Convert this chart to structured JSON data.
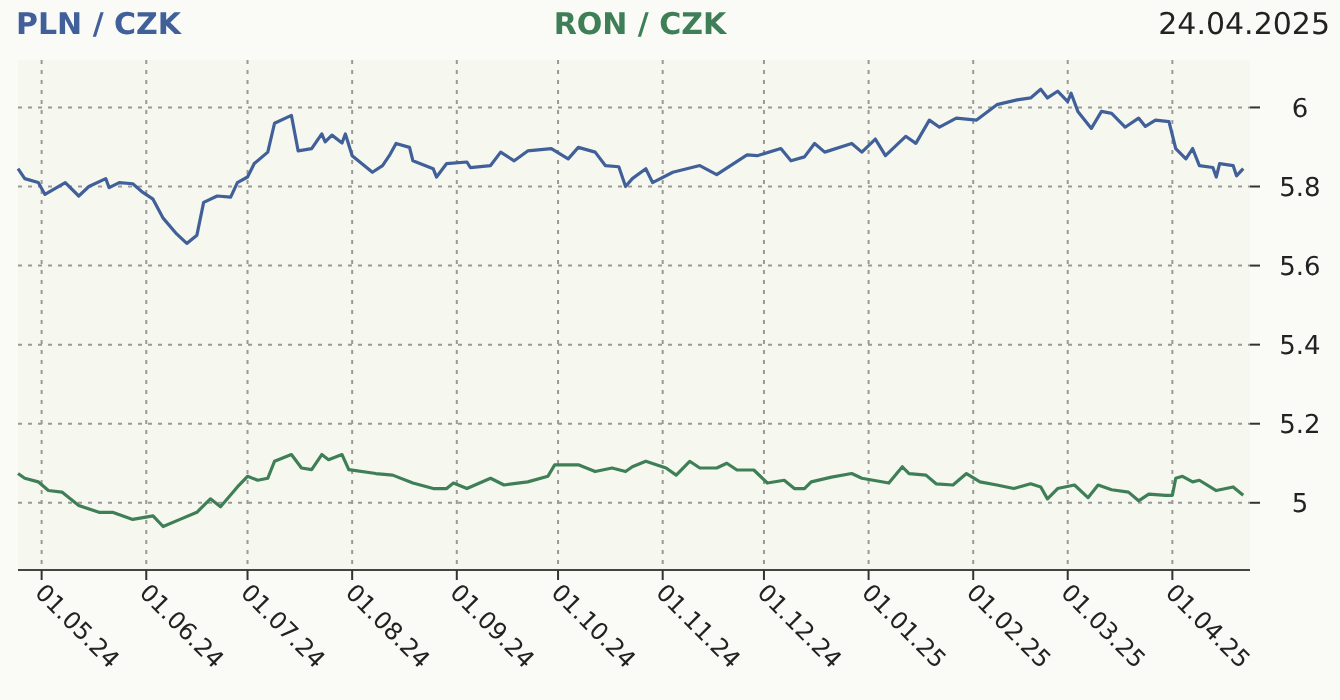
{
  "chart_data": {
    "type": "line",
    "annotations": [
      "24.04.2025"
    ],
    "legend": "top",
    "grid": true,
    "xlim": [
      "2024-04-24",
      "2025-04-24"
    ],
    "xticks": [
      {
        "value": "2024-05-01",
        "label": "01.05.24"
      },
      {
        "value": "2024-06-01",
        "label": "01.06.24"
      },
      {
        "value": "2024-07-01",
        "label": "01.07.24"
      },
      {
        "value": "2024-08-01",
        "label": "01.08.24"
      },
      {
        "value": "2024-09-01",
        "label": "01.09.24"
      },
      {
        "value": "2024-10-01",
        "label": "01.10.24"
      },
      {
        "value": "2024-11-01",
        "label": "01.11.24"
      },
      {
        "value": "2024-12-01",
        "label": "01.12.24"
      },
      {
        "value": "2025-01-01",
        "label": "01.01.25"
      },
      {
        "value": "2025-02-01",
        "label": "01.02.25"
      },
      {
        "value": "2025-03-01",
        "label": "01.03.25"
      },
      {
        "value": "2025-04-01",
        "label": "01.04.25"
      }
    ],
    "ylim": [
      4.83,
      6.12
    ],
    "yticks": [
      5,
      5.2,
      5.4,
      5.6,
      5.8,
      6
    ],
    "series": [
      {
        "name": "PLN / CZK",
        "color": "#41609a",
        "x": [
          "2024-04-24",
          "2024-04-26",
          "2024-04-30",
          "2024-05-02",
          "2024-05-08",
          "2024-05-12",
          "2024-05-15",
          "2024-05-20",
          "2024-05-21",
          "2024-05-24",
          "2024-05-28",
          "2024-05-31",
          "2024-06-03",
          "2024-06-06",
          "2024-06-10",
          "2024-06-13",
          "2024-06-16",
          "2024-06-18",
          "2024-06-22",
          "2024-06-26",
          "2024-06-28",
          "2024-07-01",
          "2024-07-03",
          "2024-07-07",
          "2024-07-09",
          "2024-07-14",
          "2024-07-16",
          "2024-07-20",
          "2024-07-23",
          "2024-07-24",
          "2024-07-26",
          "2024-07-29",
          "2024-07-30",
          "2024-08-01",
          "2024-08-07",
          "2024-08-10",
          "2024-08-12",
          "2024-08-14",
          "2024-08-18",
          "2024-08-19",
          "2024-08-25",
          "2024-08-26",
          "2024-08-29",
          "2024-09-04",
          "2024-09-05",
          "2024-09-11",
          "2024-09-14",
          "2024-09-18",
          "2024-09-22",
          "2024-09-29",
          "2024-10-04",
          "2024-10-07",
          "2024-10-12",
          "2024-10-15",
          "2024-10-19",
          "2024-10-21",
          "2024-10-23",
          "2024-10-27",
          "2024-10-29",
          "2024-11-04",
          "2024-11-12",
          "2024-11-17",
          "2024-11-26",
          "2024-11-29",
          "2024-12-06",
          "2024-12-09",
          "2024-12-13",
          "2024-12-16",
          "2024-12-19",
          "2024-12-27",
          "2024-12-30",
          "2025-01-03",
          "2025-01-06",
          "2025-01-12",
          "2025-01-15",
          "2025-01-19",
          "2025-01-22",
          "2025-01-27",
          "2025-02-02",
          "2025-02-08",
          "2025-02-14",
          "2025-02-18",
          "2025-02-21",
          "2025-02-23",
          "2025-02-26",
          "2025-03-01",
          "2025-03-02",
          "2025-03-04",
          "2025-03-08",
          "2025-03-11",
          "2025-03-14",
          "2025-03-18",
          "2025-03-22",
          "2025-03-24",
          "2025-03-27",
          "2025-03-31",
          "2025-04-02",
          "2025-04-05",
          "2025-04-07",
          "2025-04-09",
          "2025-04-13",
          "2025-04-14",
          "2025-04-15",
          "2025-04-19",
          "2025-04-20",
          "2025-04-22"
        ],
        "values": [
          5.845,
          5.82,
          5.81,
          5.78,
          5.81,
          5.776,
          5.8,
          5.82,
          5.797,
          5.81,
          5.807,
          5.785,
          5.768,
          5.72,
          5.68,
          5.656,
          5.677,
          5.76,
          5.776,
          5.773,
          5.81,
          5.824,
          5.858,
          5.887,
          5.96,
          5.98,
          5.89,
          5.896,
          5.933,
          5.913,
          5.93,
          5.91,
          5.933,
          5.878,
          5.836,
          5.853,
          5.878,
          5.909,
          5.899,
          5.865,
          5.845,
          5.824,
          5.858,
          5.862,
          5.848,
          5.853,
          5.887,
          5.865,
          5.89,
          5.896,
          5.87,
          5.899,
          5.887,
          5.853,
          5.85,
          5.8,
          5.82,
          5.845,
          5.81,
          5.836,
          5.853,
          5.83,
          5.88,
          5.878,
          5.896,
          5.865,
          5.875,
          5.909,
          5.887,
          5.909,
          5.887,
          5.92,
          5.878,
          5.927,
          5.909,
          5.968,
          5.95,
          5.973,
          5.968,
          6.007,
          6.019,
          6.024,
          6.046,
          6.024,
          6.041,
          6.015,
          6.036,
          5.99,
          5.947,
          5.99,
          5.985,
          5.95,
          5.973,
          5.952,
          5.968,
          5.964,
          5.896,
          5.87,
          5.896,
          5.853,
          5.848,
          5.824,
          5.858,
          5.853,
          5.827,
          5.845
        ]
      },
      {
        "name": "RON / CZK",
        "color": "#3f7f57",
        "x": [
          "2024-04-24",
          "2024-04-26",
          "2024-04-30",
          "2024-05-03",
          "2024-05-07",
          "2024-05-12",
          "2024-05-18",
          "2024-05-22",
          "2024-05-28",
          "2024-06-03",
          "2024-06-06",
          "2024-06-11",
          "2024-06-16",
          "2024-06-20",
          "2024-06-23",
          "2024-06-28",
          "2024-07-01",
          "2024-07-04",
          "2024-07-07",
          "2024-07-09",
          "2024-07-14",
          "2024-07-17",
          "2024-07-20",
          "2024-07-23",
          "2024-07-25",
          "2024-07-29",
          "2024-07-31",
          "2024-08-08",
          "2024-08-13",
          "2024-08-19",
          "2024-08-25",
          "2024-08-29",
          "2024-08-31",
          "2024-09-04",
          "2024-09-11",
          "2024-09-15",
          "2024-09-22",
          "2024-09-28",
          "2024-09-30",
          "2024-10-07",
          "2024-10-12",
          "2024-10-17",
          "2024-10-21",
          "2024-10-23",
          "2024-10-27",
          "2024-11-02",
          "2024-11-05",
          "2024-11-09",
          "2024-11-12",
          "2024-11-17",
          "2024-11-20",
          "2024-11-23",
          "2024-11-28",
          "2024-12-02",
          "2024-12-07",
          "2024-12-10",
          "2024-12-13",
          "2024-12-15",
          "2024-12-21",
          "2024-12-27",
          "2024-12-30",
          "2025-01-07",
          "2025-01-11",
          "2025-01-13",
          "2025-01-18",
          "2025-01-21",
          "2025-01-26",
          "2025-01-30",
          "2025-02-03",
          "2025-02-08",
          "2025-02-13",
          "2025-02-18",
          "2025-02-21",
          "2025-02-23",
          "2025-02-26",
          "2025-03-03",
          "2025-03-07",
          "2025-03-10",
          "2025-03-14",
          "2025-03-19",
          "2025-03-22",
          "2025-03-25",
          "2025-03-30",
          "2025-04-01",
          "2025-04-02",
          "2025-04-04",
          "2025-04-07",
          "2025-04-09",
          "2025-04-14",
          "2025-04-19",
          "2025-04-22"
        ],
        "values": [
          5.074,
          5.062,
          5.053,
          5.031,
          5.027,
          4.993,
          4.976,
          4.976,
          4.958,
          4.967,
          4.94,
          4.958,
          4.976,
          5.01,
          4.99,
          5.04,
          5.067,
          5.057,
          5.062,
          5.105,
          5.122,
          5.088,
          5.084,
          5.122,
          5.109,
          5.122,
          5.084,
          5.074,
          5.07,
          5.05,
          5.036,
          5.036,
          5.05,
          5.036,
          5.062,
          5.045,
          5.053,
          5.067,
          5.096,
          5.096,
          5.079,
          5.088,
          5.079,
          5.091,
          5.105,
          5.088,
          5.07,
          5.105,
          5.088,
          5.088,
          5.1,
          5.083,
          5.083,
          5.05,
          5.057,
          5.036,
          5.036,
          5.053,
          5.065,
          5.074,
          5.062,
          5.05,
          5.091,
          5.074,
          5.07,
          5.048,
          5.045,
          5.074,
          5.053,
          5.045,
          5.036,
          5.048,
          5.04,
          5.01,
          5.036,
          5.045,
          5.013,
          5.045,
          5.033,
          5.027,
          5.005,
          5.022,
          5.019,
          5.019,
          5.062,
          5.067,
          5.053,
          5.057,
          5.031,
          5.04,
          5.019
        ]
      }
    ]
  }
}
